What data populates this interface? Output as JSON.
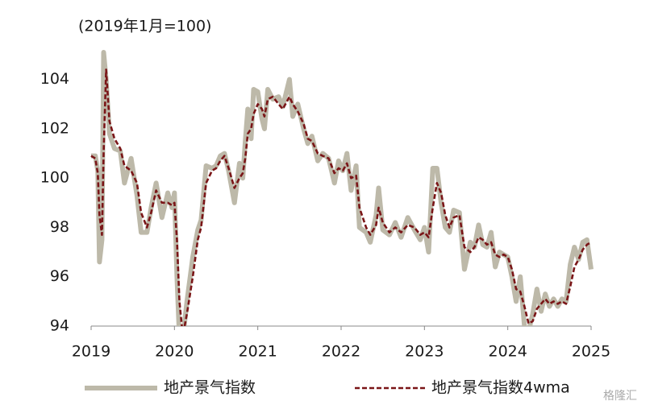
{
  "chart_data": {
    "type": "line",
    "subtitle": "(2019年1月=100)",
    "x": [
      2019.0,
      2019.05,
      2019.08,
      2019.1,
      2019.13,
      2019.15,
      2019.18,
      2019.22,
      2019.28,
      2019.35,
      2019.4,
      2019.48,
      2019.55,
      2019.6,
      2019.67,
      2019.72,
      2019.78,
      2019.85,
      2019.92,
      2019.97,
      2020.0,
      2020.03,
      2020.06,
      2020.1,
      2020.15,
      2020.22,
      2020.28,
      2020.32,
      2020.38,
      2020.45,
      2020.5,
      2020.55,
      2020.6,
      2020.65,
      2020.72,
      2020.78,
      2020.82,
      2020.85,
      2020.88,
      2020.92,
      2020.95,
      2021.0,
      2021.05,
      2021.08,
      2021.12,
      2021.18,
      2021.25,
      2021.3,
      2021.38,
      2021.42,
      2021.48,
      2021.55,
      2021.6,
      2021.65,
      2021.72,
      2021.78,
      2021.85,
      2021.92,
      2021.97,
      2022.02,
      2022.07,
      2022.12,
      2022.18,
      2022.22,
      2022.3,
      2022.35,
      2022.42,
      2022.45,
      2022.5,
      2022.58,
      2022.65,
      2022.72,
      2022.8,
      2022.88,
      2022.95,
      2023.0,
      2023.05,
      2023.1,
      2023.15,
      2023.2,
      2023.25,
      2023.3,
      2023.35,
      2023.42,
      2023.48,
      2023.55,
      2023.6,
      2023.65,
      2023.7,
      2023.75,
      2023.8,
      2023.85,
      2023.9,
      2023.95,
      2024.0,
      2024.05,
      2024.1,
      2024.15,
      2024.2,
      2024.25,
      2024.3,
      2024.35,
      2024.4,
      2024.45,
      2024.5,
      2024.55,
      2024.6,
      2024.65,
      2024.7,
      2024.75,
      2024.8,
      2024.85,
      2024.9,
      2024.95,
      2025.0
    ],
    "series": [
      {
        "name": "地产景气指数",
        "color": "#bdb9a9",
        "values": [
          100.9,
          100.9,
          100.3,
          96.6,
          97.5,
          105.1,
          104.0,
          101.8,
          101.2,
          101.1,
          99.8,
          100.8,
          99.3,
          97.8,
          97.8,
          98.8,
          99.8,
          98.4,
          99.4,
          98.8,
          99.4,
          96.0,
          93.5,
          93.5,
          95.0,
          96.8,
          97.9,
          98.3,
          100.5,
          100.4,
          100.5,
          100.9,
          101.0,
          100.3,
          99.0,
          100.6,
          100.0,
          101.5,
          102.8,
          101.6,
          103.6,
          103.5,
          102.4,
          102.0,
          103.6,
          103.2,
          103.3,
          102.9,
          104.0,
          102.5,
          103.0,
          102.0,
          101.4,
          101.7,
          100.7,
          101.0,
          100.8,
          99.8,
          100.7,
          100.3,
          101.0,
          99.5,
          100.5,
          98.0,
          97.8,
          97.4,
          98.5,
          99.6,
          97.9,
          97.7,
          98.2,
          97.6,
          98.4,
          97.9,
          97.5,
          98.0,
          97.0,
          100.4,
          100.4,
          99.0,
          98.0,
          97.8,
          98.7,
          98.6,
          96.3,
          97.4,
          97.2,
          98.1,
          97.3,
          97.2,
          97.8,
          96.4,
          97.0,
          96.9,
          96.8,
          96.0,
          95.0,
          96.0,
          94.0,
          93.8,
          94.5,
          95.5,
          94.6,
          95.3,
          94.8,
          95.1,
          94.8,
          95.1,
          95.0,
          96.5,
          97.2,
          96.7,
          97.4,
          97.5,
          96.3
        ]
      },
      {
        "name": "地产景气指数4wma",
        "color": "#7a1517",
        "dashed": true,
        "values": [
          100.9,
          100.8,
          100.2,
          98.5,
          97.7,
          101.0,
          104.4,
          102.3,
          101.6,
          101.2,
          100.5,
          100.3,
          99.8,
          98.6,
          98.0,
          98.6,
          99.5,
          99.0,
          99.0,
          98.9,
          99.0,
          97.5,
          95.0,
          93.6,
          94.5,
          96.0,
          97.5,
          98.0,
          99.8,
          100.3,
          100.4,
          100.7,
          100.9,
          100.4,
          99.6,
          100.0,
          100.2,
          100.8,
          101.8,
          102.0,
          102.6,
          103.0,
          102.8,
          102.5,
          103.2,
          103.3,
          103.0,
          102.8,
          103.3,
          103.0,
          102.7,
          102.2,
          101.6,
          101.5,
          101.0,
          100.9,
          100.8,
          100.2,
          100.4,
          100.3,
          100.6,
          100.0,
          100.1,
          98.8,
          98.0,
          97.7,
          98.1,
          98.8,
          98.2,
          97.8,
          98.0,
          97.8,
          98.1,
          98.0,
          97.7,
          97.8,
          97.6,
          98.8,
          99.8,
          99.4,
          98.5,
          98.0,
          98.4,
          98.5,
          97.2,
          97.0,
          97.2,
          97.6,
          97.5,
          97.3,
          97.4,
          96.9,
          96.8,
          96.9,
          96.8,
          96.3,
          95.5,
          95.4,
          94.8,
          94.1,
          94.2,
          94.7,
          94.9,
          95.1,
          94.9,
          95.0,
          94.9,
          95.0,
          94.9,
          95.6,
          96.4,
          96.7,
          97.1,
          97.3,
          97.4
        ]
      }
    ],
    "xlim": [
      2019,
      2025
    ],
    "xticks": [
      2019,
      2020,
      2021,
      2022,
      2023,
      2024,
      2025
    ],
    "ylim": [
      94,
      105.1
    ],
    "yticks": [
      94,
      96,
      98,
      100,
      102,
      104
    ],
    "grid": false,
    "watermark": "格隆汇"
  }
}
